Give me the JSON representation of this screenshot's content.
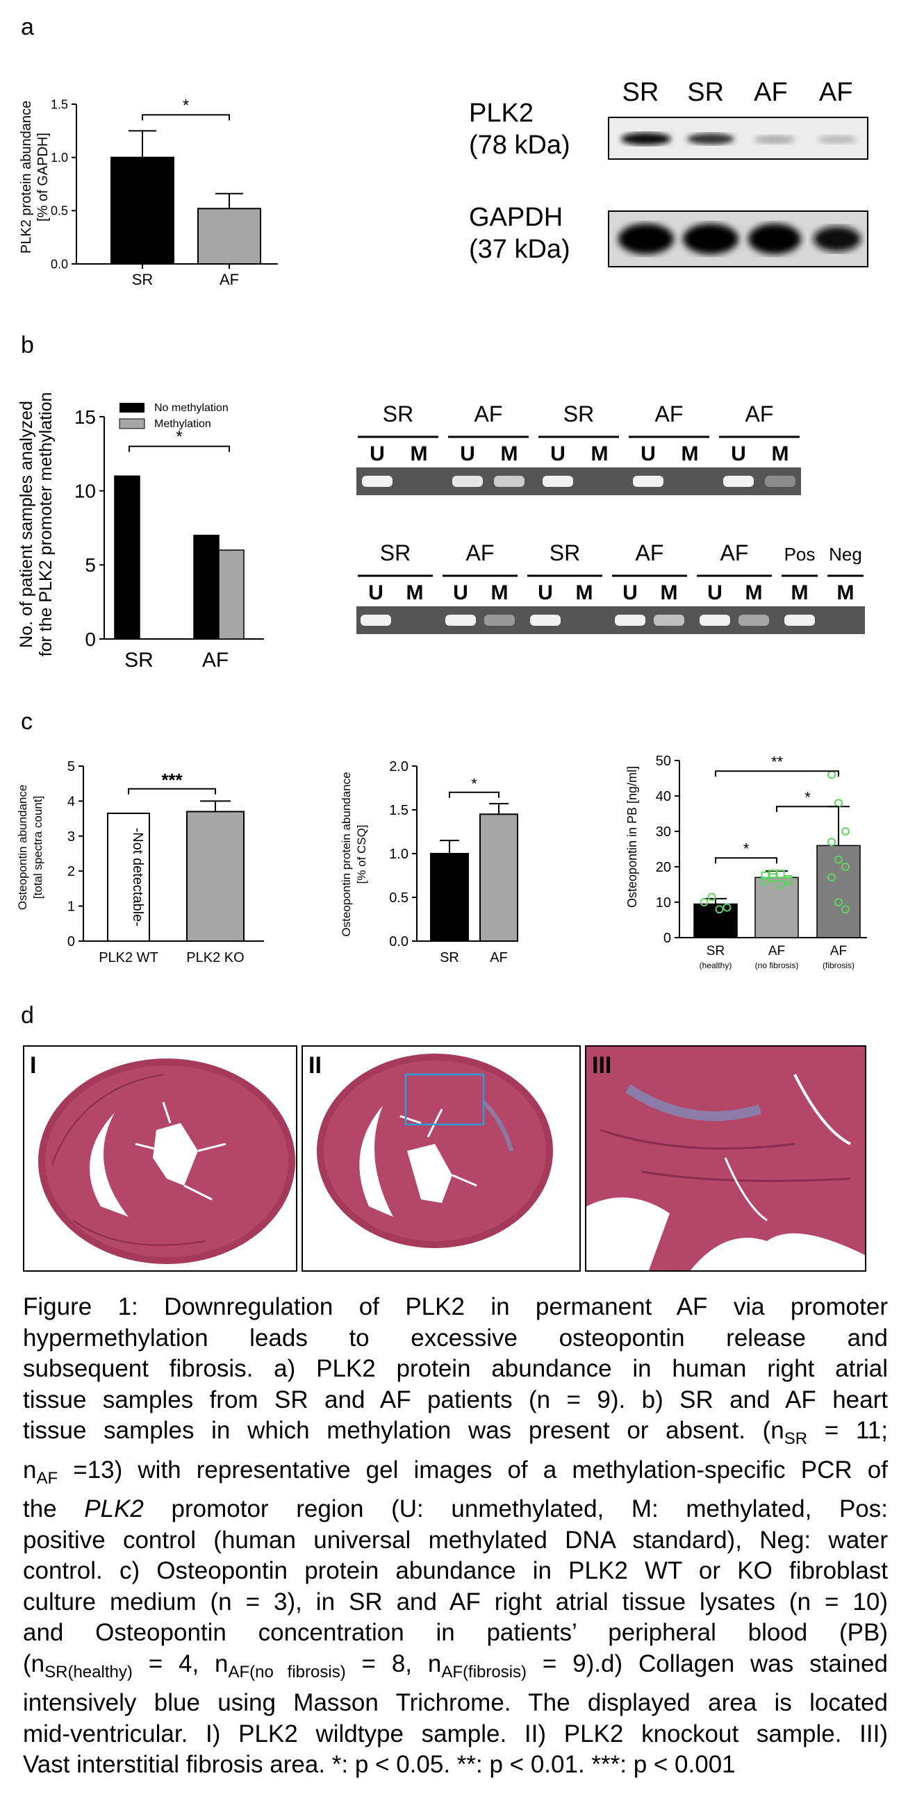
{
  "panels": {
    "a": "a",
    "b": "b",
    "c": "c",
    "d": "d"
  },
  "chart_data": [
    {
      "id": "a-bar",
      "type": "bar",
      "ylabel": "PLK2 protein abundance [% of GAPDH]",
      "ylabel_lines": [
        "PLK2 protein abundance",
        "[% of GAPDH]"
      ],
      "categories": [
        "SR",
        "AF"
      ],
      "values": [
        1.0,
        0.52
      ],
      "errors": [
        0.25,
        0.14
      ],
      "colors": [
        "#000000",
        "#a6a6a6"
      ],
      "ylim": [
        0,
        1.5
      ],
      "yticks": [
        "0.0",
        "0.5",
        "1.0",
        "1.5"
      ],
      "annotations": [
        "*"
      ]
    },
    {
      "id": "b-bar",
      "type": "bar",
      "ylabel": "No. of patient samples analyzed for the PLK2 promoter methylation",
      "ylabel_lines": [
        "No. of patient samples analyzed",
        "for the PLK2 promoter methylation"
      ],
      "categories": [
        "SR",
        "AF"
      ],
      "series": [
        {
          "name": "No methylation",
          "values": [
            11,
            7
          ],
          "color": "#000000"
        },
        {
          "name": "Methylation",
          "values": [
            0,
            6
          ],
          "color": "#a6a6a6"
        }
      ],
      "ylim": [
        0,
        15
      ],
      "yticks": [
        "0",
        "5",
        "10",
        "15"
      ],
      "legend": "top-left",
      "annotations": [
        "*"
      ]
    },
    {
      "id": "c-left",
      "type": "bar",
      "ylabel": "Osteopontin abundance [total spectra count]",
      "ylabel_lines": [
        "Osteopontin abundance",
        "[total spectra count]"
      ],
      "categories": [
        "PLK2 WT",
        "PLK2 KO"
      ],
      "values": [
        null,
        3.7
      ],
      "errors": [
        null,
        0.3
      ],
      "bar_text": "-Not detectable-",
      "ylim": [
        0,
        5
      ],
      "yticks": [
        "0",
        "1",
        "2",
        "3",
        "4",
        "5"
      ],
      "annotations": [
        "***"
      ]
    },
    {
      "id": "c-mid",
      "type": "bar",
      "ylabel": "Osteopontin protein abundance [% of CSQ]",
      "ylabel_lines": [
        "Osteopontin protein abundance",
        "[% of CSQ]"
      ],
      "categories": [
        "SR",
        "AF"
      ],
      "values": [
        1.0,
        1.45
      ],
      "errors": [
        0.15,
        0.12
      ],
      "colors": [
        "#000000",
        "#a6a6a6"
      ],
      "ylim": [
        0,
        2.0
      ],
      "yticks": [
        "0.0",
        "0.5",
        "1.0",
        "1.5",
        "2.0"
      ],
      "annotations": [
        "*"
      ]
    },
    {
      "id": "c-right",
      "type": "bar",
      "ylabel": "Osteopontin in PB [ng/ml]",
      "categories": [
        "SR",
        "AF",
        "AF"
      ],
      "subcategories": [
        "(healthy)",
        "(no fibrosis)",
        "(fibrosis)"
      ],
      "values": [
        9.5,
        17,
        26
      ],
      "errors": [
        1.5,
        1.8,
        11
      ],
      "colors": [
        "#000000",
        "#a6a6a6",
        "#7f7f7f"
      ],
      "points": [
        [
          10,
          11.5,
          8,
          8.5
        ],
        [
          16,
          17,
          18,
          16.5,
          17.5,
          18,
          15,
          16
        ],
        [
          46,
          38,
          30,
          27,
          22,
          20,
          17,
          10,
          8
        ]
      ],
      "ylim": [
        0,
        50
      ],
      "yticks": [
        "0",
        "10",
        "20",
        "30",
        "40",
        "50"
      ],
      "annotations": [
        "**",
        "*",
        "*"
      ]
    }
  ],
  "blot": {
    "lanes": [
      "SR",
      "SR",
      "AF",
      "AF"
    ],
    "rows": [
      {
        "label1": "PLK2",
        "label2": "(78 kDa)"
      },
      {
        "label1": "GAPDH",
        "label2": "(37 kDa)"
      }
    ]
  },
  "gel_top": {
    "groups": [
      "SR",
      "AF",
      "SR",
      "AF",
      "AF"
    ],
    "lanes": [
      "U",
      "M",
      "U",
      "M",
      "U",
      "M",
      "U",
      "M",
      "U",
      "M"
    ]
  },
  "gel_bottom": {
    "groups": [
      "SR",
      "AF",
      "SR",
      "AF",
      "AF",
      "Pos",
      "Neg"
    ],
    "lanes": [
      "U",
      "M",
      "U",
      "M",
      "U",
      "M",
      "U",
      "M",
      "U",
      "M",
      "M",
      "M"
    ]
  },
  "histology": {
    "labels": [
      "I",
      "II",
      "III"
    ]
  },
  "caption": {
    "l1": "Figure 1: Downregulation of PLK2 in permanent AF via promoter",
    "l2": "hypermethylation leads to excessive osteopontin release and",
    "l3": "subsequent fibrosis. a) PLK2 protein abundance in human right atrial",
    "l4": "tissue samples from SR and AF patients (n = 9). b) SR and AF heart",
    "l5a": "tissue samples in which methylation was present or absent. (n",
    "l5sub": "SR",
    "l5b": " = 11;",
    "l6a": "n",
    "l6sub": "AF",
    "l6b": " =13) with representative gel images of a methylation-specific PCR of",
    "l7a": "the ",
    "l7i": "PLK2",
    "l7b": " promotor region (U: unmethylated, M: methylated, Pos:",
    "l8": "positive control (human universal methylated DNA standard), Neg: water",
    "l9": "control. c) Osteopontin protein abundance in PLK2 WT or KO fibroblast",
    "l10": "culture medium (n = 3), in SR and AF right atrial tissue lysates (n = 10)",
    "l11": "and Osteopontin concentration in patients’ peripheral blood (PB)",
    "l12a": "(n",
    "l12s1": "SR(healthy)",
    "l12b": " = 4, n",
    "l12s2": "AF(no fibrosis)",
    "l12c": " = 8, n",
    "l12s3": "AF(fibrosis)",
    "l12d": " = 9).d) Collagen was stained",
    "l13": "intensively blue using Masson Trichrome. The displayed area is located",
    "l14": "mid-ventricular. I) PLK2 wildtype sample. II) PLK2 knockout sample. III)",
    "l15": "Vast interstitial fibrosis area. *: p < 0.05. **: p < 0.01. ***: p < 0.001"
  }
}
